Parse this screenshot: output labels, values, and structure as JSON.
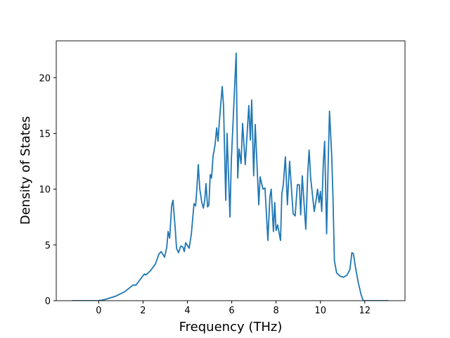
{
  "chart_data": {
    "type": "line",
    "x_label": "Frequency (THz)",
    "y_label": "Density of States",
    "color": "#1f77b4",
    "x": [
      -1.2,
      0,
      0.28,
      0.76,
      1.17,
      1.55,
      1.68,
      1.87,
      2.06,
      2.12,
      2.34,
      2.56,
      2.72,
      2.82,
      2.97,
      3.07,
      3.13,
      3.2,
      3.29,
      3.35,
      3.45,
      3.51,
      3.6,
      3.7,
      3.8,
      3.86,
      3.92,
      4.02,
      4.08,
      4.18,
      4.24,
      4.3,
      4.37,
      4.43,
      4.49,
      4.56,
      4.65,
      4.72,
      4.78,
      4.84,
      4.91,
      4.97,
      5.03,
      5.09,
      5.16,
      5.25,
      5.32,
      5.38,
      5.44,
      5.57,
      5.63,
      5.73,
      5.79,
      5.92,
      5.98,
      6.2,
      6.27,
      6.33,
      6.42,
      6.49,
      6.61,
      6.77,
      6.84,
      6.9,
      6.99,
      7.06,
      7.22,
      7.28,
      7.41,
      7.5,
      7.63,
      7.72,
      7.78,
      7.88,
      7.94,
      8.0,
      8.07,
      8.2,
      8.26,
      8.32,
      8.42,
      8.51,
      8.61,
      8.77,
      8.86,
      8.96,
      9.05,
      9.11,
      9.18,
      9.34,
      9.43,
      9.49,
      9.56,
      9.72,
      9.81,
      9.87,
      9.94,
      10.0,
      10.06,
      10.13,
      10.19,
      10.28,
      10.35,
      10.41,
      10.51,
      10.57,
      10.63,
      10.73,
      10.89,
      11.04,
      11.2,
      11.33,
      11.42,
      11.49,
      11.58,
      11.71,
      11.84,
      11.93,
      13.07
    ],
    "values": [
      0,
      0,
      0.1,
      0.4,
      0.8,
      1.4,
      1.4,
      1.9,
      2.4,
      2.3,
      2.7,
      3.3,
      4.2,
      4.4,
      3.9,
      4.8,
      6.2,
      5.6,
      8.5,
      9.0,
      6.5,
      4.7,
      4.3,
      4.9,
      4.8,
      4.4,
      5.2,
      4.9,
      4.7,
      6.0,
      7.4,
      8.7,
      8.5,
      10.1,
      12.2,
      10.0,
      8.8,
      8.3,
      9.0,
      10.5,
      8.4,
      8.6,
      11.3,
      11.0,
      13.0,
      14.0,
      15.5,
      14.3,
      16.0,
      19.2,
      17.5,
      9.0,
      15.0,
      7.5,
      12.5,
      22.2,
      11.0,
      13.6,
      12.3,
      15.9,
      12.2,
      17.5,
      14.4,
      18.0,
      11.2,
      15.8,
      8.6,
      11.1,
      10.0,
      10.1,
      5.4,
      9.3,
      10.0,
      6.2,
      8.8,
      6.3,
      6.8,
      5.4,
      9.6,
      10.3,
      12.9,
      8.6,
      12.5,
      7.8,
      7.6,
      10.4,
      10.4,
      7.7,
      11.2,
      6.4,
      11.5,
      13.5,
      11.0,
      8.0,
      9.1,
      10.0,
      8.8,
      9.8,
      8.0,
      12.3,
      14.3,
      6.0,
      12.3,
      17.0,
      13.0,
      9.0,
      3.6,
      2.5,
      2.2,
      2.1,
      2.3,
      2.8,
      4.3,
      4.2,
      3.0,
      1.6,
      0.5,
      0,
      0
    ],
    "xlim": [
      -1.915,
      13.815
    ],
    "ylim": [
      0,
      23.3
    ],
    "xticks": [
      0,
      2,
      4,
      6,
      8,
      10,
      12
    ],
    "yticks": [
      0,
      5,
      10,
      15,
      20
    ]
  }
}
